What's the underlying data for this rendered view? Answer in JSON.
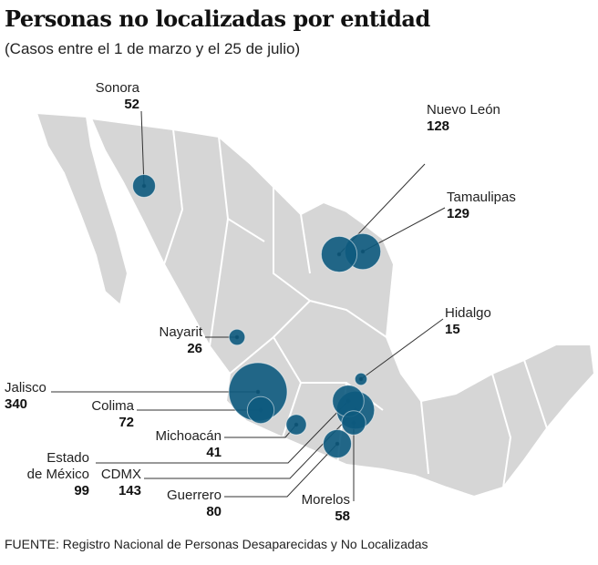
{
  "title": "Personas no localizadas por entidad",
  "subtitle": "(Casos entre el 1 de marzo y el 25 de julio)",
  "source": "FUENTE: Registro Nacional de Personas Desaparecidas y No Localizadas",
  "colors": {
    "bubble": "#0d5a7e",
    "map": "#d6d6d6",
    "leader": "#333333"
  },
  "chart_data": {
    "type": "bubble-map",
    "region": "México",
    "states": [
      {
        "name": "Sonora",
        "value": 52
      },
      {
        "name": "Nuevo León",
        "value": 128
      },
      {
        "name": "Tamaulipas",
        "value": 129
      },
      {
        "name": "Hidalgo",
        "value": 15
      },
      {
        "name": "Nayarit",
        "value": 26
      },
      {
        "name": "Jalisco",
        "value": 340
      },
      {
        "name": "Colima",
        "value": 72
      },
      {
        "name": "Michoacán",
        "value": 41
      },
      {
        "name": "Estado de México",
        "value": 99
      },
      {
        "name": "CDMX",
        "value": 143
      },
      {
        "name": "Guerrero",
        "value": 80
      },
      {
        "name": "Morelos",
        "value": 58
      }
    ]
  }
}
